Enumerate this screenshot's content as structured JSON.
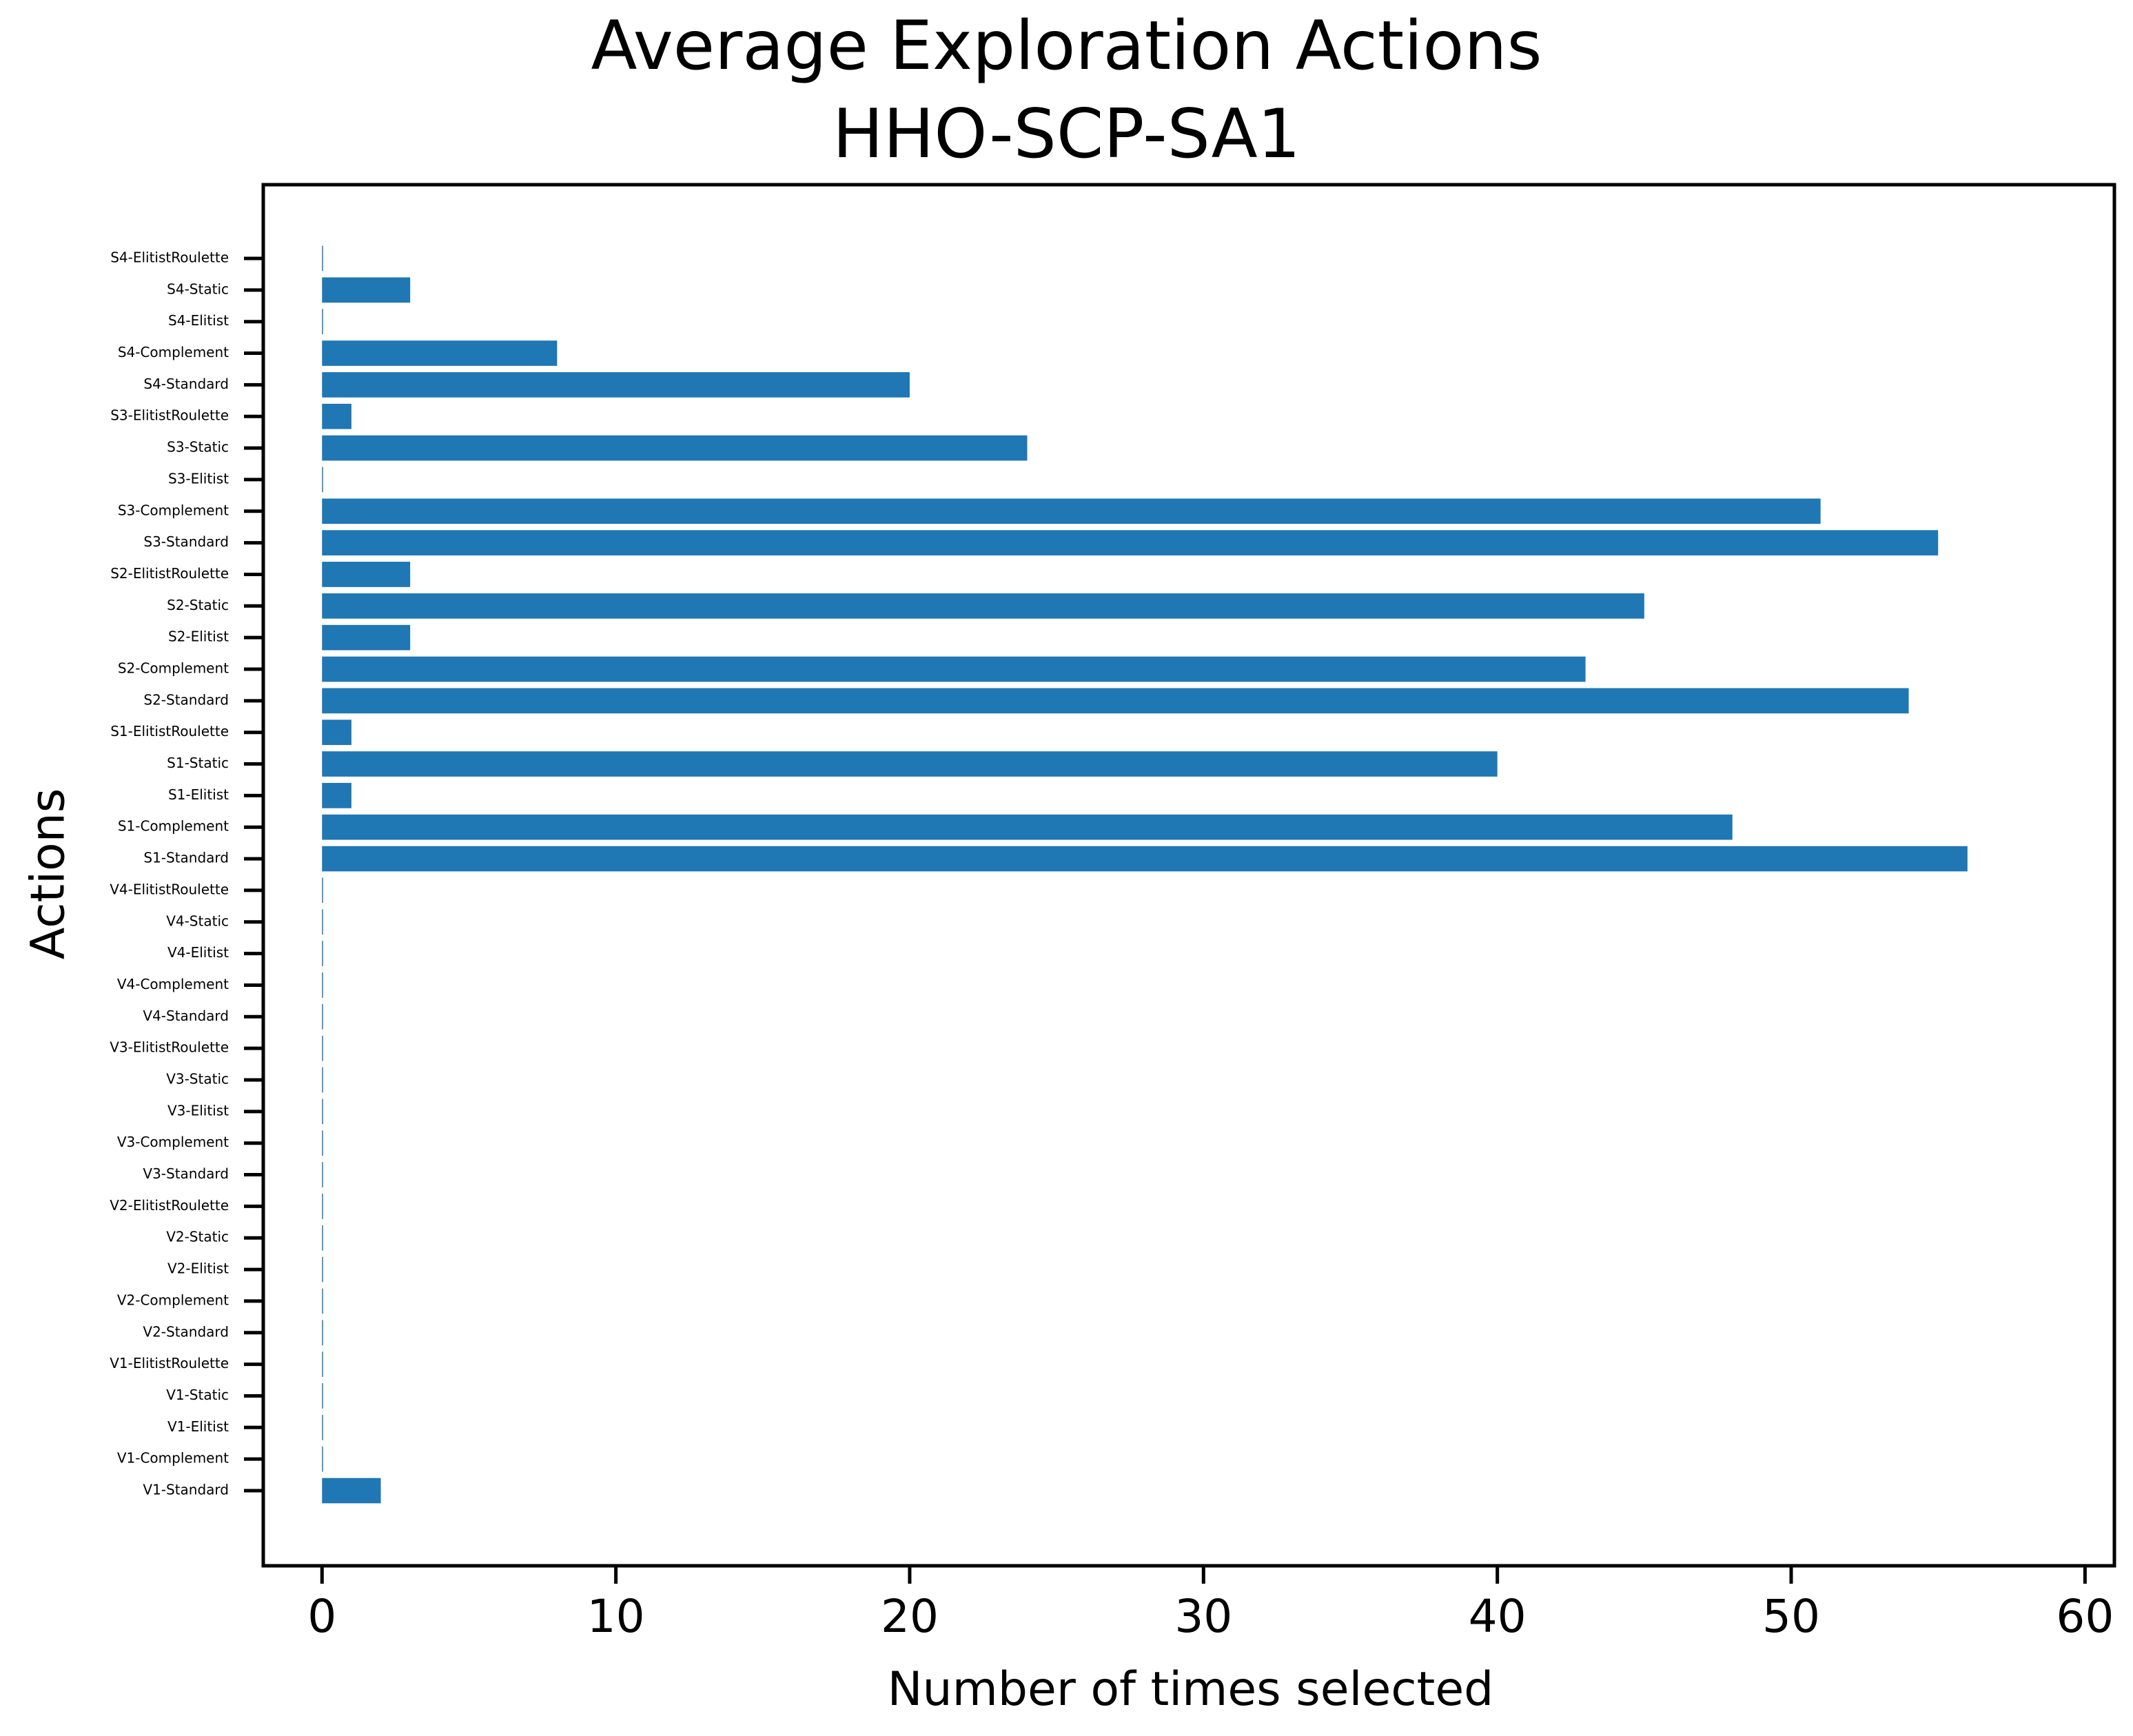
{
  "chart_data": {
    "type": "bar",
    "orientation": "horizontal",
    "title": "Average Exploration Actions",
    "subtitle": "HHO-SCP-SA1",
    "xlabel": "Number of times selected",
    "ylabel": "Actions",
    "xlim": [
      -2,
      61
    ],
    "xticks": [
      0,
      10,
      20,
      30,
      40,
      50,
      60
    ],
    "grid": false,
    "bar_color": "#1f77b4",
    "categories": [
      "V1-Standard",
      "V1-Complement",
      "V1-Elitist",
      "V1-Static",
      "V1-ElitistRoulette",
      "V2-Standard",
      "V2-Complement",
      "V2-Elitist",
      "V2-Static",
      "V2-ElitistRoulette",
      "V3-Standard",
      "V3-Complement",
      "V3-Elitist",
      "V3-Static",
      "V3-ElitistRoulette",
      "V4-Standard",
      "V4-Complement",
      "V4-Elitist",
      "V4-Static",
      "V4-ElitistRoulette",
      "S1-Standard",
      "S1-Complement",
      "S1-Elitist",
      "S1-Static",
      "S1-ElitistRoulette",
      "S2-Standard",
      "S2-Complement",
      "S2-Elitist",
      "S2-Static",
      "S2-ElitistRoulette",
      "S3-Standard",
      "S3-Complement",
      "S3-Elitist",
      "S3-Static",
      "S3-ElitistRoulette",
      "S4-Standard",
      "S4-Complement",
      "S4-Elitist",
      "S4-Static",
      "S4-ElitistRoulette"
    ],
    "values": [
      2,
      0,
      0,
      0,
      0,
      0,
      0,
      0,
      0,
      0,
      0,
      0,
      0,
      0,
      0,
      0,
      0,
      0,
      0,
      0,
      56,
      48,
      1,
      40,
      1,
      54,
      43,
      3,
      45,
      3,
      55,
      51,
      0,
      24,
      1,
      20,
      8,
      0,
      3,
      0
    ]
  }
}
